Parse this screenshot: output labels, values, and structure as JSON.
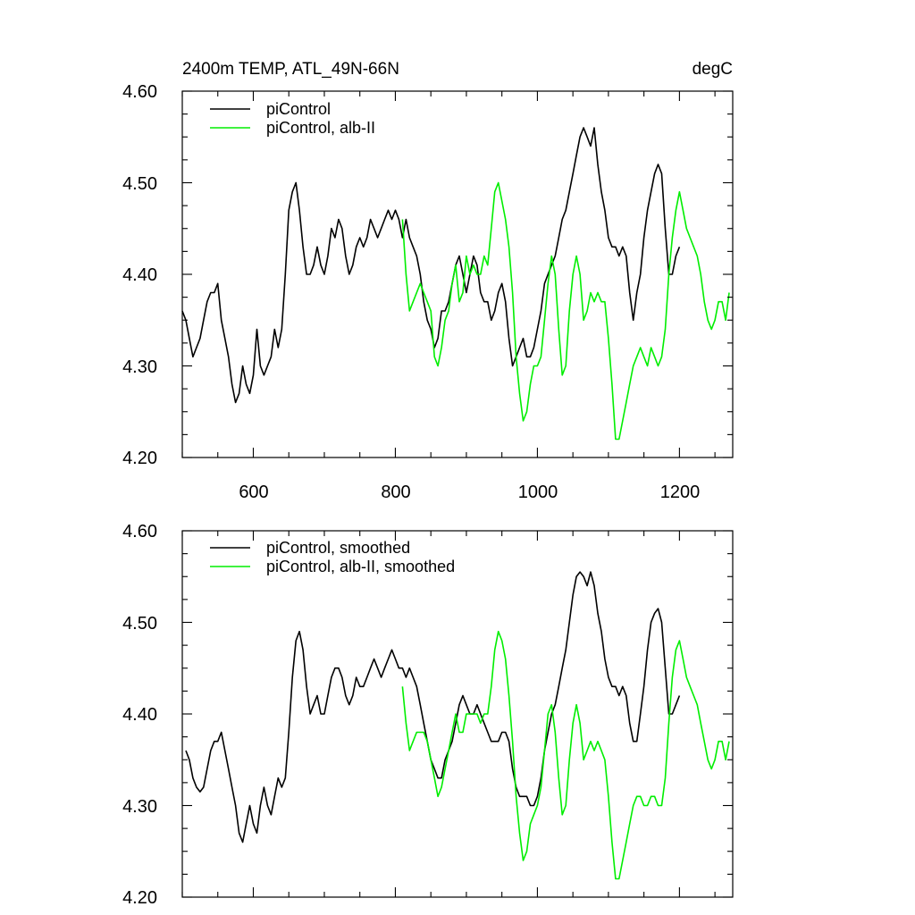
{
  "header": {
    "title": "2400m TEMP, ATL_49N-66N",
    "units": "degC"
  },
  "colors": {
    "piControl": "#000000",
    "alb": "#00ee00"
  },
  "chart_data": [
    {
      "type": "line",
      "panel": "top",
      "xlim": [
        500,
        1275
      ],
      "ylim": [
        4.2,
        4.6
      ],
      "x_ticks": [
        600,
        800,
        1000,
        1200
      ],
      "x_tick_labels": [
        "600",
        "800",
        "1000",
        "1200"
      ],
      "y_ticks": [
        4.2,
        4.3,
        4.4,
        4.5,
        4.6
      ],
      "y_tick_labels": [
        "4.20",
        "4.30",
        "4.40",
        "4.50",
        "4.60"
      ],
      "grid": false,
      "legend": "top-left",
      "series": [
        {
          "name": "piControl",
          "color": "#000000",
          "x": [
            500,
            505,
            510,
            515,
            520,
            525,
            530,
            535,
            540,
            545,
            550,
            555,
            560,
            565,
            570,
            575,
            580,
            585,
            590,
            595,
            600,
            605,
            610,
            615,
            620,
            625,
            630,
            635,
            640,
            645,
            650,
            655,
            660,
            665,
            670,
            675,
            680,
            685,
            690,
            695,
            700,
            705,
            710,
            715,
            720,
            725,
            730,
            735,
            740,
            745,
            750,
            755,
            760,
            765,
            770,
            775,
            780,
            785,
            790,
            795,
            800,
            805,
            810,
            815,
            820,
            825,
            830,
            835,
            840,
            845,
            850,
            855,
            860,
            865,
            870,
            875,
            880,
            885,
            890,
            895,
            900,
            905,
            910,
            915,
            920,
            925,
            930,
            935,
            940,
            945,
            950,
            955,
            960,
            965,
            970,
            975,
            980,
            985,
            990,
            995,
            1000,
            1005,
            1010,
            1015,
            1020,
            1025,
            1030,
            1035,
            1040,
            1045,
            1050,
            1055,
            1060,
            1065,
            1070,
            1075,
            1080,
            1085,
            1090,
            1095,
            1100,
            1105,
            1110,
            1115,
            1120,
            1125,
            1130,
            1135,
            1140,
            1145,
            1150,
            1155,
            1160,
            1165,
            1170,
            1175,
            1180,
            1185,
            1190,
            1195,
            1200
          ],
          "values": [
            4.36,
            4.35,
            4.33,
            4.31,
            4.32,
            4.33,
            4.35,
            4.37,
            4.38,
            4.38,
            4.39,
            4.35,
            4.33,
            4.31,
            4.28,
            4.26,
            4.27,
            4.3,
            4.28,
            4.27,
            4.29,
            4.34,
            4.3,
            4.29,
            4.3,
            4.31,
            4.34,
            4.32,
            4.34,
            4.4,
            4.47,
            4.49,
            4.5,
            4.47,
            4.43,
            4.4,
            4.4,
            4.41,
            4.43,
            4.41,
            4.4,
            4.42,
            4.45,
            4.44,
            4.46,
            4.45,
            4.42,
            4.4,
            4.41,
            4.43,
            4.44,
            4.43,
            4.44,
            4.46,
            4.45,
            4.44,
            4.45,
            4.46,
            4.47,
            4.46,
            4.47,
            4.46,
            4.44,
            4.46,
            4.44,
            4.43,
            4.42,
            4.4,
            4.37,
            4.35,
            4.34,
            4.32,
            4.33,
            4.36,
            4.36,
            4.37,
            4.39,
            4.41,
            4.42,
            4.4,
            4.38,
            4.4,
            4.42,
            4.41,
            4.38,
            4.37,
            4.37,
            4.35,
            4.36,
            4.38,
            4.39,
            4.37,
            4.33,
            4.3,
            4.31,
            4.32,
            4.33,
            4.31,
            4.31,
            4.32,
            4.34,
            4.36,
            4.39,
            4.4,
            4.41,
            4.42,
            4.44,
            4.46,
            4.47,
            4.49,
            4.51,
            4.53,
            4.55,
            4.56,
            4.55,
            4.54,
            4.56,
            4.52,
            4.49,
            4.47,
            4.44,
            4.43,
            4.43,
            4.42,
            4.43,
            4.42,
            4.38,
            4.35,
            4.38,
            4.4,
            4.44,
            4.47,
            4.49,
            4.51,
            4.52,
            4.51,
            4.45,
            4.4,
            4.4,
            4.42,
            4.43
          ]
        },
        {
          "name": "piControl, alb-II",
          "color": "#00ee00",
          "x": [
            810,
            815,
            820,
            825,
            830,
            835,
            840,
            845,
            850,
            855,
            860,
            865,
            870,
            875,
            880,
            885,
            890,
            895,
            900,
            905,
            910,
            915,
            920,
            925,
            930,
            935,
            940,
            945,
            950,
            955,
            960,
            965,
            970,
            975,
            980,
            985,
            990,
            995,
            1000,
            1005,
            1010,
            1015,
            1020,
            1025,
            1030,
            1035,
            1040,
            1045,
            1050,
            1055,
            1060,
            1065,
            1070,
            1075,
            1080,
            1085,
            1090,
            1095,
            1100,
            1105,
            1110,
            1115,
            1120,
            1125,
            1130,
            1135,
            1140,
            1145,
            1150,
            1155,
            1160,
            1165,
            1170,
            1175,
            1180,
            1185,
            1190,
            1195,
            1200,
            1205,
            1210,
            1215,
            1220,
            1225,
            1230,
            1235,
            1240,
            1245,
            1250,
            1255,
            1260,
            1265,
            1270
          ],
          "values": [
            4.46,
            4.4,
            4.36,
            4.37,
            4.38,
            4.39,
            4.38,
            4.37,
            4.36,
            4.31,
            4.3,
            4.32,
            4.35,
            4.36,
            4.39,
            4.41,
            4.37,
            4.38,
            4.42,
            4.4,
            4.41,
            4.4,
            4.4,
            4.42,
            4.41,
            4.45,
            4.49,
            4.5,
            4.48,
            4.46,
            4.43,
            4.38,
            4.31,
            4.27,
            4.24,
            4.25,
            4.28,
            4.3,
            4.3,
            4.31,
            4.35,
            4.39,
            4.42,
            4.4,
            4.34,
            4.29,
            4.3,
            4.36,
            4.4,
            4.42,
            4.4,
            4.35,
            4.36,
            4.38,
            4.37,
            4.38,
            4.37,
            4.37,
            4.33,
            4.28,
            4.22,
            4.22,
            4.24,
            4.26,
            4.28,
            4.3,
            4.31,
            4.32,
            4.31,
            4.3,
            4.32,
            4.31,
            4.3,
            4.31,
            4.34,
            4.4,
            4.44,
            4.47,
            4.49,
            4.47,
            4.45,
            4.44,
            4.43,
            4.42,
            4.4,
            4.37,
            4.35,
            4.34,
            4.35,
            4.37,
            4.37,
            4.35,
            4.38
          ]
        }
      ]
    },
    {
      "type": "line",
      "panel": "bottom",
      "xlim": [
        500,
        1275
      ],
      "ylim": [
        4.2,
        4.6
      ],
      "x_ticks": [
        600,
        800,
        1000,
        1200
      ],
      "y_ticks": [
        4.2,
        4.3,
        4.4,
        4.5,
        4.6
      ],
      "y_tick_labels": [
        "4.20",
        "4.30",
        "4.40",
        "4.50",
        "4.60"
      ],
      "grid": false,
      "legend": "top-left",
      "series": [
        {
          "name": "piControl, smoothed",
          "color": "#000000",
          "x": [
            505,
            510,
            515,
            520,
            525,
            530,
            535,
            540,
            545,
            550,
            555,
            560,
            565,
            570,
            575,
            580,
            585,
            590,
            595,
            600,
            605,
            610,
            615,
            620,
            625,
            630,
            635,
            640,
            645,
            650,
            655,
            660,
            665,
            670,
            675,
            680,
            685,
            690,
            695,
            700,
            705,
            710,
            715,
            720,
            725,
            730,
            735,
            740,
            745,
            750,
            755,
            760,
            765,
            770,
            775,
            780,
            785,
            790,
            795,
            800,
            805,
            810,
            815,
            820,
            825,
            830,
            835,
            840,
            845,
            850,
            855,
            860,
            865,
            870,
            875,
            880,
            885,
            890,
            895,
            900,
            905,
            910,
            915,
            920,
            925,
            930,
            935,
            940,
            945,
            950,
            955,
            960,
            965,
            970,
            975,
            980,
            985,
            990,
            995,
            1000,
            1005,
            1010,
            1015,
            1020,
            1025,
            1030,
            1035,
            1040,
            1045,
            1050,
            1055,
            1060,
            1065,
            1070,
            1075,
            1080,
            1085,
            1090,
            1095,
            1100,
            1105,
            1110,
            1115,
            1120,
            1125,
            1130,
            1135,
            1140,
            1145,
            1150,
            1155,
            1160,
            1165,
            1170,
            1175,
            1180,
            1185,
            1190,
            1195,
            1200
          ],
          "values": [
            4.36,
            4.35,
            4.33,
            4.32,
            4.315,
            4.32,
            4.34,
            4.36,
            4.37,
            4.37,
            4.38,
            4.36,
            4.34,
            4.32,
            4.3,
            4.27,
            4.26,
            4.28,
            4.3,
            4.28,
            4.27,
            4.3,
            4.32,
            4.3,
            4.29,
            4.31,
            4.33,
            4.32,
            4.33,
            4.38,
            4.44,
            4.48,
            4.49,
            4.47,
            4.43,
            4.4,
            4.41,
            4.42,
            4.4,
            4.4,
            4.42,
            4.44,
            4.45,
            4.45,
            4.44,
            4.42,
            4.41,
            4.42,
            4.44,
            4.43,
            4.43,
            4.44,
            4.45,
            4.46,
            4.45,
            4.44,
            4.45,
            4.46,
            4.47,
            4.46,
            4.45,
            4.45,
            4.44,
            4.45,
            4.44,
            4.43,
            4.41,
            4.39,
            4.37,
            4.35,
            4.34,
            4.33,
            4.33,
            4.35,
            4.36,
            4.37,
            4.39,
            4.41,
            4.42,
            4.41,
            4.4,
            4.4,
            4.41,
            4.4,
            4.39,
            4.38,
            4.37,
            4.37,
            4.37,
            4.38,
            4.38,
            4.37,
            4.34,
            4.32,
            4.31,
            4.31,
            4.31,
            4.3,
            4.3,
            4.31,
            4.33,
            4.36,
            4.38,
            4.4,
            4.41,
            4.43,
            4.45,
            4.47,
            4.5,
            4.53,
            4.55,
            4.555,
            4.55,
            4.54,
            4.555,
            4.54,
            4.51,
            4.49,
            4.46,
            4.44,
            4.43,
            4.43,
            4.42,
            4.43,
            4.42,
            4.39,
            4.37,
            4.37,
            4.4,
            4.43,
            4.47,
            4.5,
            4.51,
            4.515,
            4.5,
            4.45,
            4.4,
            4.4,
            4.41,
            4.42
          ]
        },
        {
          "name": "piControl, alb-II, smoothed",
          "color": "#00ee00",
          "x": [
            810,
            815,
            820,
            825,
            830,
            835,
            840,
            845,
            850,
            855,
            860,
            865,
            870,
            875,
            880,
            885,
            890,
            895,
            900,
            905,
            910,
            915,
            920,
            925,
            930,
            935,
            940,
            945,
            950,
            955,
            960,
            965,
            970,
            975,
            980,
            985,
            990,
            995,
            1000,
            1005,
            1010,
            1015,
            1020,
            1025,
            1030,
            1035,
            1040,
            1045,
            1050,
            1055,
            1060,
            1065,
            1070,
            1075,
            1080,
            1085,
            1090,
            1095,
            1100,
            1105,
            1110,
            1115,
            1120,
            1125,
            1130,
            1135,
            1140,
            1145,
            1150,
            1155,
            1160,
            1165,
            1170,
            1175,
            1180,
            1185,
            1190,
            1195,
            1200,
            1205,
            1210,
            1215,
            1220,
            1225,
            1230,
            1235,
            1240,
            1245,
            1250,
            1255,
            1260,
            1265,
            1270
          ],
          "values": [
            4.43,
            4.39,
            4.36,
            4.37,
            4.38,
            4.38,
            4.38,
            4.37,
            4.35,
            4.33,
            4.31,
            4.32,
            4.34,
            4.36,
            4.38,
            4.4,
            4.38,
            4.38,
            4.4,
            4.4,
            4.4,
            4.4,
            4.39,
            4.4,
            4.4,
            4.43,
            4.47,
            4.49,
            4.48,
            4.46,
            4.42,
            4.37,
            4.31,
            4.27,
            4.24,
            4.25,
            4.28,
            4.29,
            4.3,
            4.32,
            4.36,
            4.4,
            4.41,
            4.38,
            4.33,
            4.29,
            4.3,
            4.35,
            4.39,
            4.41,
            4.39,
            4.35,
            4.36,
            4.37,
            4.36,
            4.37,
            4.36,
            4.35,
            4.31,
            4.26,
            4.22,
            4.22,
            4.24,
            4.26,
            4.28,
            4.3,
            4.31,
            4.31,
            4.3,
            4.3,
            4.31,
            4.31,
            4.3,
            4.3,
            4.33,
            4.39,
            4.44,
            4.47,
            4.48,
            4.46,
            4.44,
            4.43,
            4.42,
            4.41,
            4.39,
            4.37,
            4.35,
            4.34,
            4.35,
            4.37,
            4.37,
            4.35,
            4.37
          ]
        }
      ]
    }
  ]
}
